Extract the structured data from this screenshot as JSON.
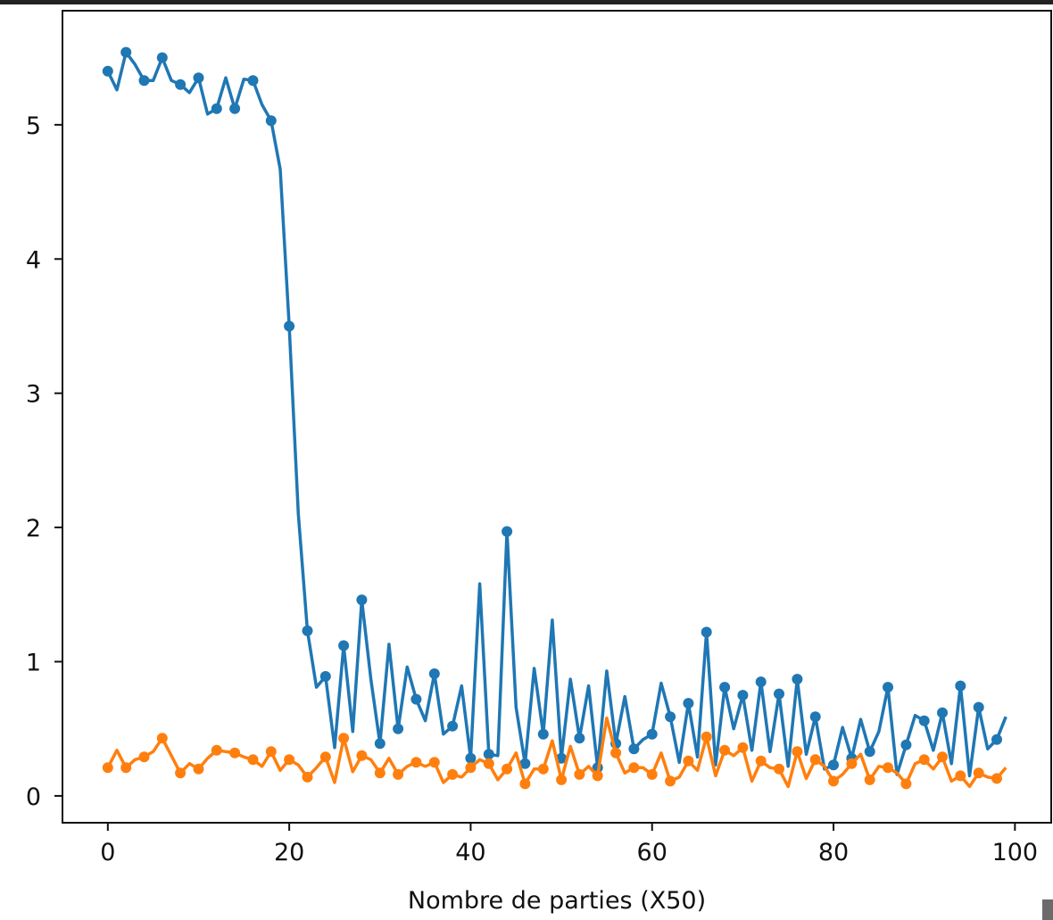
{
  "chart_data": {
    "type": "line",
    "title": "",
    "xlabel": "Nombre de parties (X50)",
    "ylabel": "",
    "xlim": [
      -5,
      104
    ],
    "ylim": [
      -0.2,
      5.85
    ],
    "x_ticks": [
      0,
      20,
      40,
      60,
      80,
      100
    ],
    "y_ticks": [
      0,
      1,
      2,
      3,
      4,
      5
    ],
    "grid": false,
    "legend": "none",
    "marker_every": 2,
    "series": [
      {
        "color": "#1f77b4",
        "x": [
          0,
          1,
          2,
          3,
          4,
          5,
          6,
          7,
          8,
          9,
          10,
          11,
          12,
          13,
          14,
          15,
          16,
          17,
          18,
          19,
          20,
          21,
          22,
          23,
          24,
          25,
          26,
          27,
          28,
          29,
          30,
          31,
          32,
          33,
          34,
          35,
          36,
          37,
          38,
          39,
          40,
          41,
          42,
          43,
          44,
          45,
          46,
          47,
          48,
          49,
          50,
          51,
          52,
          53,
          54,
          55,
          56,
          57,
          58,
          59,
          60,
          61,
          62,
          63,
          64,
          65,
          66,
          67,
          68,
          69,
          70,
          71,
          72,
          73,
          74,
          75,
          76,
          77,
          78,
          79,
          80,
          81,
          82,
          83,
          84,
          85,
          86,
          87,
          88,
          89,
          90,
          91,
          92,
          93,
          94,
          95,
          96,
          97,
          98,
          99
        ],
        "y": [
          5.4,
          5.26,
          5.54,
          5.45,
          5.33,
          5.33,
          5.5,
          5.33,
          5.3,
          5.24,
          5.35,
          5.08,
          5.12,
          5.35,
          5.12,
          5.34,
          5.33,
          5.15,
          5.03,
          4.67,
          3.5,
          2.1,
          1.23,
          0.81,
          0.89,
          0.36,
          1.12,
          0.48,
          1.46,
          0.87,
          0.39,
          1.13,
          0.5,
          0.96,
          0.72,
          0.56,
          0.91,
          0.46,
          0.52,
          0.82,
          0.28,
          1.58,
          0.31,
          0.3,
          1.97,
          0.66,
          0.24,
          0.95,
          0.46,
          1.31,
          0.28,
          0.87,
          0.43,
          0.82,
          0.21,
          0.93,
          0.39,
          0.74,
          0.35,
          0.42,
          0.46,
          0.84,
          0.59,
          0.25,
          0.69,
          0.29,
          1.22,
          0.23,
          0.81,
          0.5,
          0.75,
          0.34,
          0.85,
          0.33,
          0.76,
          0.22,
          0.87,
          0.31,
          0.59,
          0.2,
          0.23,
          0.51,
          0.28,
          0.57,
          0.33,
          0.48,
          0.81,
          0.16,
          0.38,
          0.6,
          0.56,
          0.34,
          0.62,
          0.24,
          0.82,
          0.15,
          0.66,
          0.35,
          0.42,
          0.59
        ]
      },
      {
        "color": "#ff7f0e",
        "x": [
          0,
          1,
          2,
          3,
          4,
          5,
          6,
          7,
          8,
          9,
          10,
          11,
          12,
          13,
          14,
          15,
          16,
          17,
          18,
          19,
          20,
          21,
          22,
          23,
          24,
          25,
          26,
          27,
          28,
          29,
          30,
          31,
          32,
          33,
          34,
          35,
          36,
          37,
          38,
          39,
          40,
          41,
          42,
          43,
          44,
          45,
          46,
          47,
          48,
          49,
          50,
          51,
          52,
          53,
          54,
          55,
          56,
          57,
          58,
          59,
          60,
          61,
          62,
          63,
          64,
          65,
          66,
          67,
          68,
          69,
          70,
          71,
          72,
          73,
          74,
          75,
          76,
          77,
          78,
          79,
          80,
          81,
          82,
          83,
          84,
          85,
          86,
          87,
          88,
          89,
          90,
          91,
          92,
          93,
          94,
          95,
          96,
          97,
          98,
          99
        ],
        "y": [
          0.21,
          0.34,
          0.21,
          0.27,
          0.29,
          0.33,
          0.43,
          0.3,
          0.17,
          0.24,
          0.2,
          0.28,
          0.34,
          0.33,
          0.32,
          0.29,
          0.27,
          0.22,
          0.33,
          0.19,
          0.27,
          0.23,
          0.14,
          0.21,
          0.29,
          0.1,
          0.43,
          0.18,
          0.3,
          0.27,
          0.17,
          0.28,
          0.16,
          0.22,
          0.25,
          0.22,
          0.25,
          0.1,
          0.16,
          0.14,
          0.21,
          0.27,
          0.24,
          0.12,
          0.2,
          0.32,
          0.09,
          0.2,
          0.2,
          0.41,
          0.12,
          0.37,
          0.16,
          0.22,
          0.15,
          0.58,
          0.32,
          0.17,
          0.21,
          0.21,
          0.16,
          0.32,
          0.11,
          0.14,
          0.26,
          0.19,
          0.44,
          0.15,
          0.34,
          0.3,
          0.36,
          0.11,
          0.26,
          0.21,
          0.2,
          0.07,
          0.33,
          0.13,
          0.27,
          0.22,
          0.11,
          0.16,
          0.24,
          0.31,
          0.12,
          0.22,
          0.21,
          0.17,
          0.09,
          0.24,
          0.27,
          0.2,
          0.29,
          0.11,
          0.15,
          0.07,
          0.17,
          0.14,
          0.13,
          0.21
        ]
      }
    ]
  }
}
